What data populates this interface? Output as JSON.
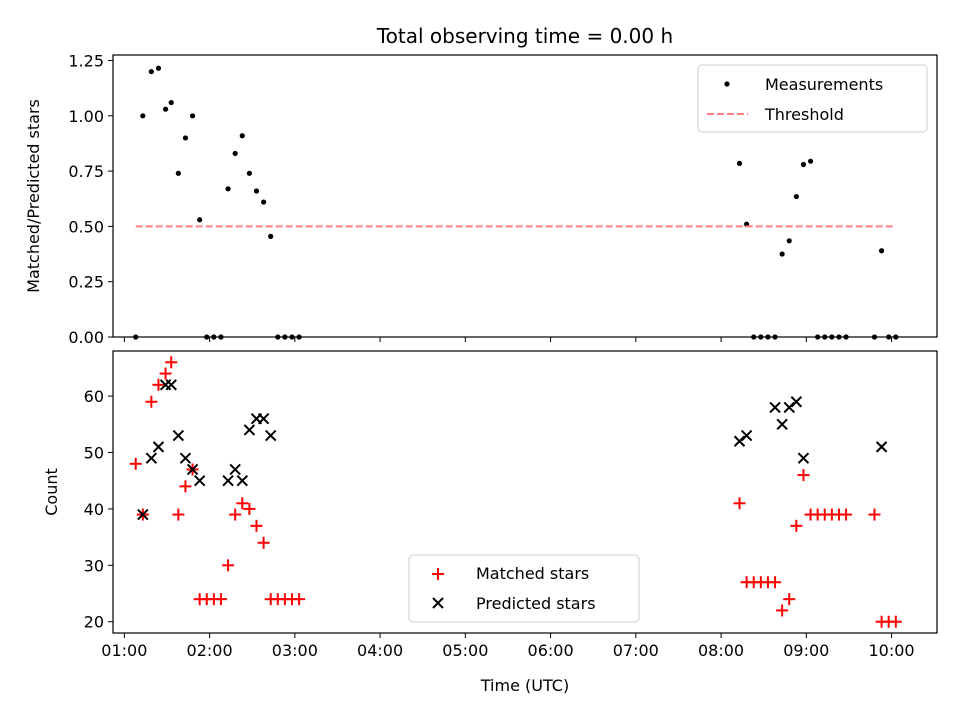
{
  "chart_data": [
    {
      "type": "scatter",
      "title": "Total observing time = 0.00 h",
      "xlabel": "",
      "ylabel": "Matched/Predicted stars",
      "xlim": [
        "00:52",
        "10:32"
      ],
      "ylim": [
        0,
        1.275
      ],
      "x_ticks": [
        "01:00",
        "02:00",
        "03:00",
        "04:00",
        "05:00",
        "06:00",
        "07:00",
        "08:00",
        "09:00",
        "10:00"
      ],
      "y_ticks": [
        "0.00",
        "0.25",
        "0.50",
        "0.75",
        "1.00",
        "1.25"
      ],
      "y_tick_values": [
        0,
        0.25,
        0.5,
        0.75,
        1.0,
        1.25
      ],
      "legend": {
        "placement": "upper right",
        "entries": [
          "Measurements",
          "Threshold"
        ]
      },
      "series": [
        {
          "name": "Measurements",
          "marker": "dot",
          "color": "#000000",
          "x": [
            "01:08",
            "01:13",
            "01:19",
            "01:24",
            "01:29",
            "01:33",
            "01:38",
            "01:43",
            "01:48",
            "01:53",
            "01:58",
            "02:03",
            "02:08",
            "02:13",
            "02:18",
            "02:23",
            "02:28",
            "02:33",
            "02:38",
            "02:43",
            "02:48",
            "02:53",
            "02:58",
            "03:03",
            "08:13",
            "08:18",
            "08:23",
            "08:28",
            "08:33",
            "08:38",
            "08:43",
            "08:48",
            "08:53",
            "08:58",
            "09:03",
            "09:08",
            "09:13",
            "09:18",
            "09:23",
            "09:28",
            "09:48",
            "09:53",
            "09:58",
            "10:03"
          ],
          "y": [
            0,
            1.0,
            1.2,
            1.215,
            1.03,
            1.06,
            0.74,
            0.9,
            1.0,
            0.53,
            0,
            0,
            0,
            0.67,
            0.83,
            0.91,
            0.74,
            0.66,
            0.61,
            0.455,
            0,
            0,
            0,
            0,
            0.785,
            0.51,
            0,
            0,
            0,
            0,
            0.375,
            0.435,
            0.635,
            0.78,
            0.795,
            0,
            0,
            0,
            0,
            0,
            0,
            0.39,
            0,
            0
          ]
        },
        {
          "name": "Threshold",
          "style": "dashed",
          "color": "#ff7f7f",
          "x": [
            "01:08",
            "10:03"
          ],
          "y": [
            0.5,
            0.5
          ]
        }
      ]
    },
    {
      "type": "scatter",
      "title": "",
      "xlabel": "Time (UTC)",
      "ylabel": "Count",
      "xlim": [
        "00:52",
        "10:32"
      ],
      "ylim": [
        18,
        68
      ],
      "x_ticks": [
        "01:00",
        "02:00",
        "03:00",
        "04:00",
        "05:00",
        "06:00",
        "07:00",
        "08:00",
        "09:00",
        "10:00"
      ],
      "y_ticks": [
        "20",
        "30",
        "40",
        "50",
        "60"
      ],
      "y_tick_values": [
        20,
        30,
        40,
        50,
        60
      ],
      "legend": {
        "placement": "lower center",
        "entries": [
          "Matched stars",
          "Predicted stars"
        ]
      },
      "series": [
        {
          "name": "Matched stars",
          "marker": "plus",
          "color": "#ff0000",
          "x": [
            "01:08",
            "01:13",
            "01:19",
            "01:24",
            "01:29",
            "01:33",
            "01:38",
            "01:43",
            "01:48",
            "01:53",
            "01:58",
            "02:03",
            "02:08",
            "02:13",
            "02:18",
            "02:23",
            "02:28",
            "02:33",
            "02:38",
            "02:43",
            "02:48",
            "02:53",
            "02:58",
            "03:03",
            "08:13",
            "08:18",
            "08:23",
            "08:28",
            "08:33",
            "08:38",
            "08:43",
            "08:48",
            "08:53",
            "08:58",
            "09:03",
            "09:08",
            "09:13",
            "09:18",
            "09:23",
            "09:28",
            "09:48",
            "09:53",
            "09:58",
            "10:03"
          ],
          "y": [
            48,
            39,
            59,
            62,
            64,
            66,
            39,
            44,
            47,
            24,
            24,
            24,
            24,
            30,
            39,
            41,
            40,
            37,
            34,
            24,
            24,
            24,
            24,
            24,
            41,
            27,
            27,
            27,
            27,
            27,
            22,
            24,
            37,
            46,
            39,
            39,
            39,
            39,
            39,
            39,
            39,
            20,
            20,
            20
          ]
        },
        {
          "name": "Predicted stars",
          "marker": "x",
          "color": "#000000",
          "x": [
            "01:13",
            "01:19",
            "01:24",
            "01:29",
            "01:33",
            "01:38",
            "01:43",
            "01:48",
            "01:53",
            "02:13",
            "02:18",
            "02:23",
            "02:28",
            "02:33",
            "02:38",
            "02:43",
            "08:13",
            "08:18",
            "08:38",
            "08:43",
            "08:48",
            "08:53",
            "08:58",
            "09:53"
          ],
          "y": [
            39,
            49,
            51,
            62,
            62,
            53,
            49,
            47,
            45,
            45,
            47,
            45,
            54,
            56,
            56,
            53,
            52,
            53,
            58,
            55,
            58,
            59,
            49,
            51
          ]
        }
      ]
    }
  ]
}
